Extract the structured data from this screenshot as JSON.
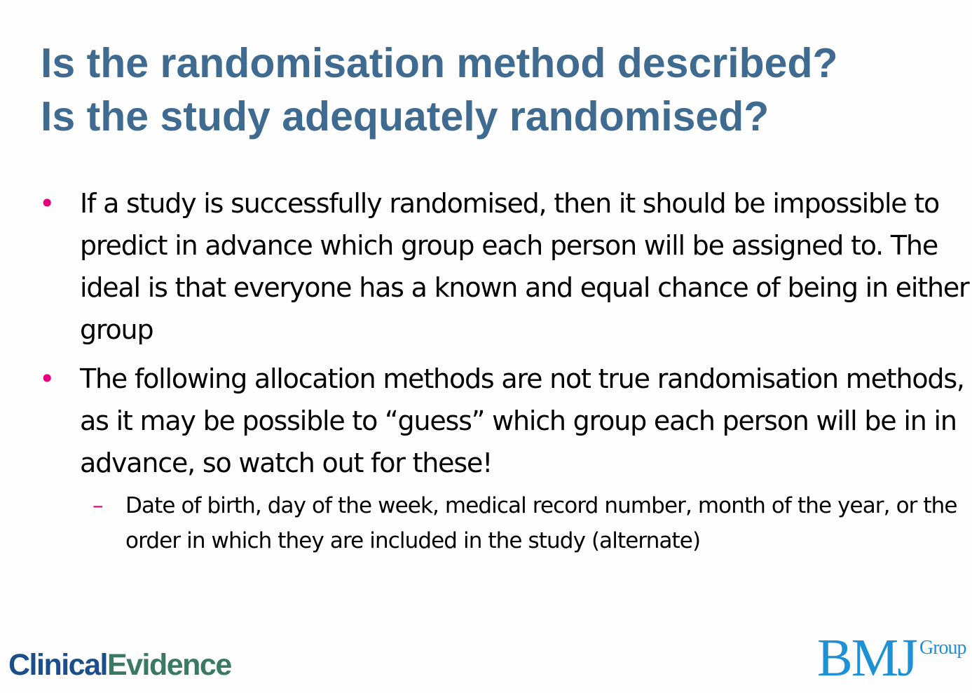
{
  "slide": {
    "title_line1": "Is the randomisation method described?",
    "title_line2": "Is the study adequately randomised?",
    "bullet_marker": "•",
    "sub_bullet_marker": "–",
    "bullets": [
      {
        "text": "If a study is successfully randomised, then it should be impossible to predict in advance which group each person will be assigned to. The ideal is that everyone has a known and equal chance of being in either group"
      },
      {
        "text": "The following allocation methods are not true randomisation methods, as it may be possible to “guess” which group each person will be in in advance, so watch out for these!",
        "sub_bullets": [
          {
            "text": "Date of birth, day of the week, medical record number, month of the year, or the order in which they are included in the study (alternate)"
          }
        ]
      }
    ]
  },
  "logos": {
    "left_part1": "Clinical",
    "left_part2": "Evidence",
    "right_main": "BMJ",
    "right_sup": "Group"
  },
  "colors": {
    "title": "#3f6b91",
    "bullet_marker": "#e6007e",
    "clinical": "#1c4f8a",
    "evidence": "#3b7a62",
    "bmj": "#1e90d6"
  }
}
